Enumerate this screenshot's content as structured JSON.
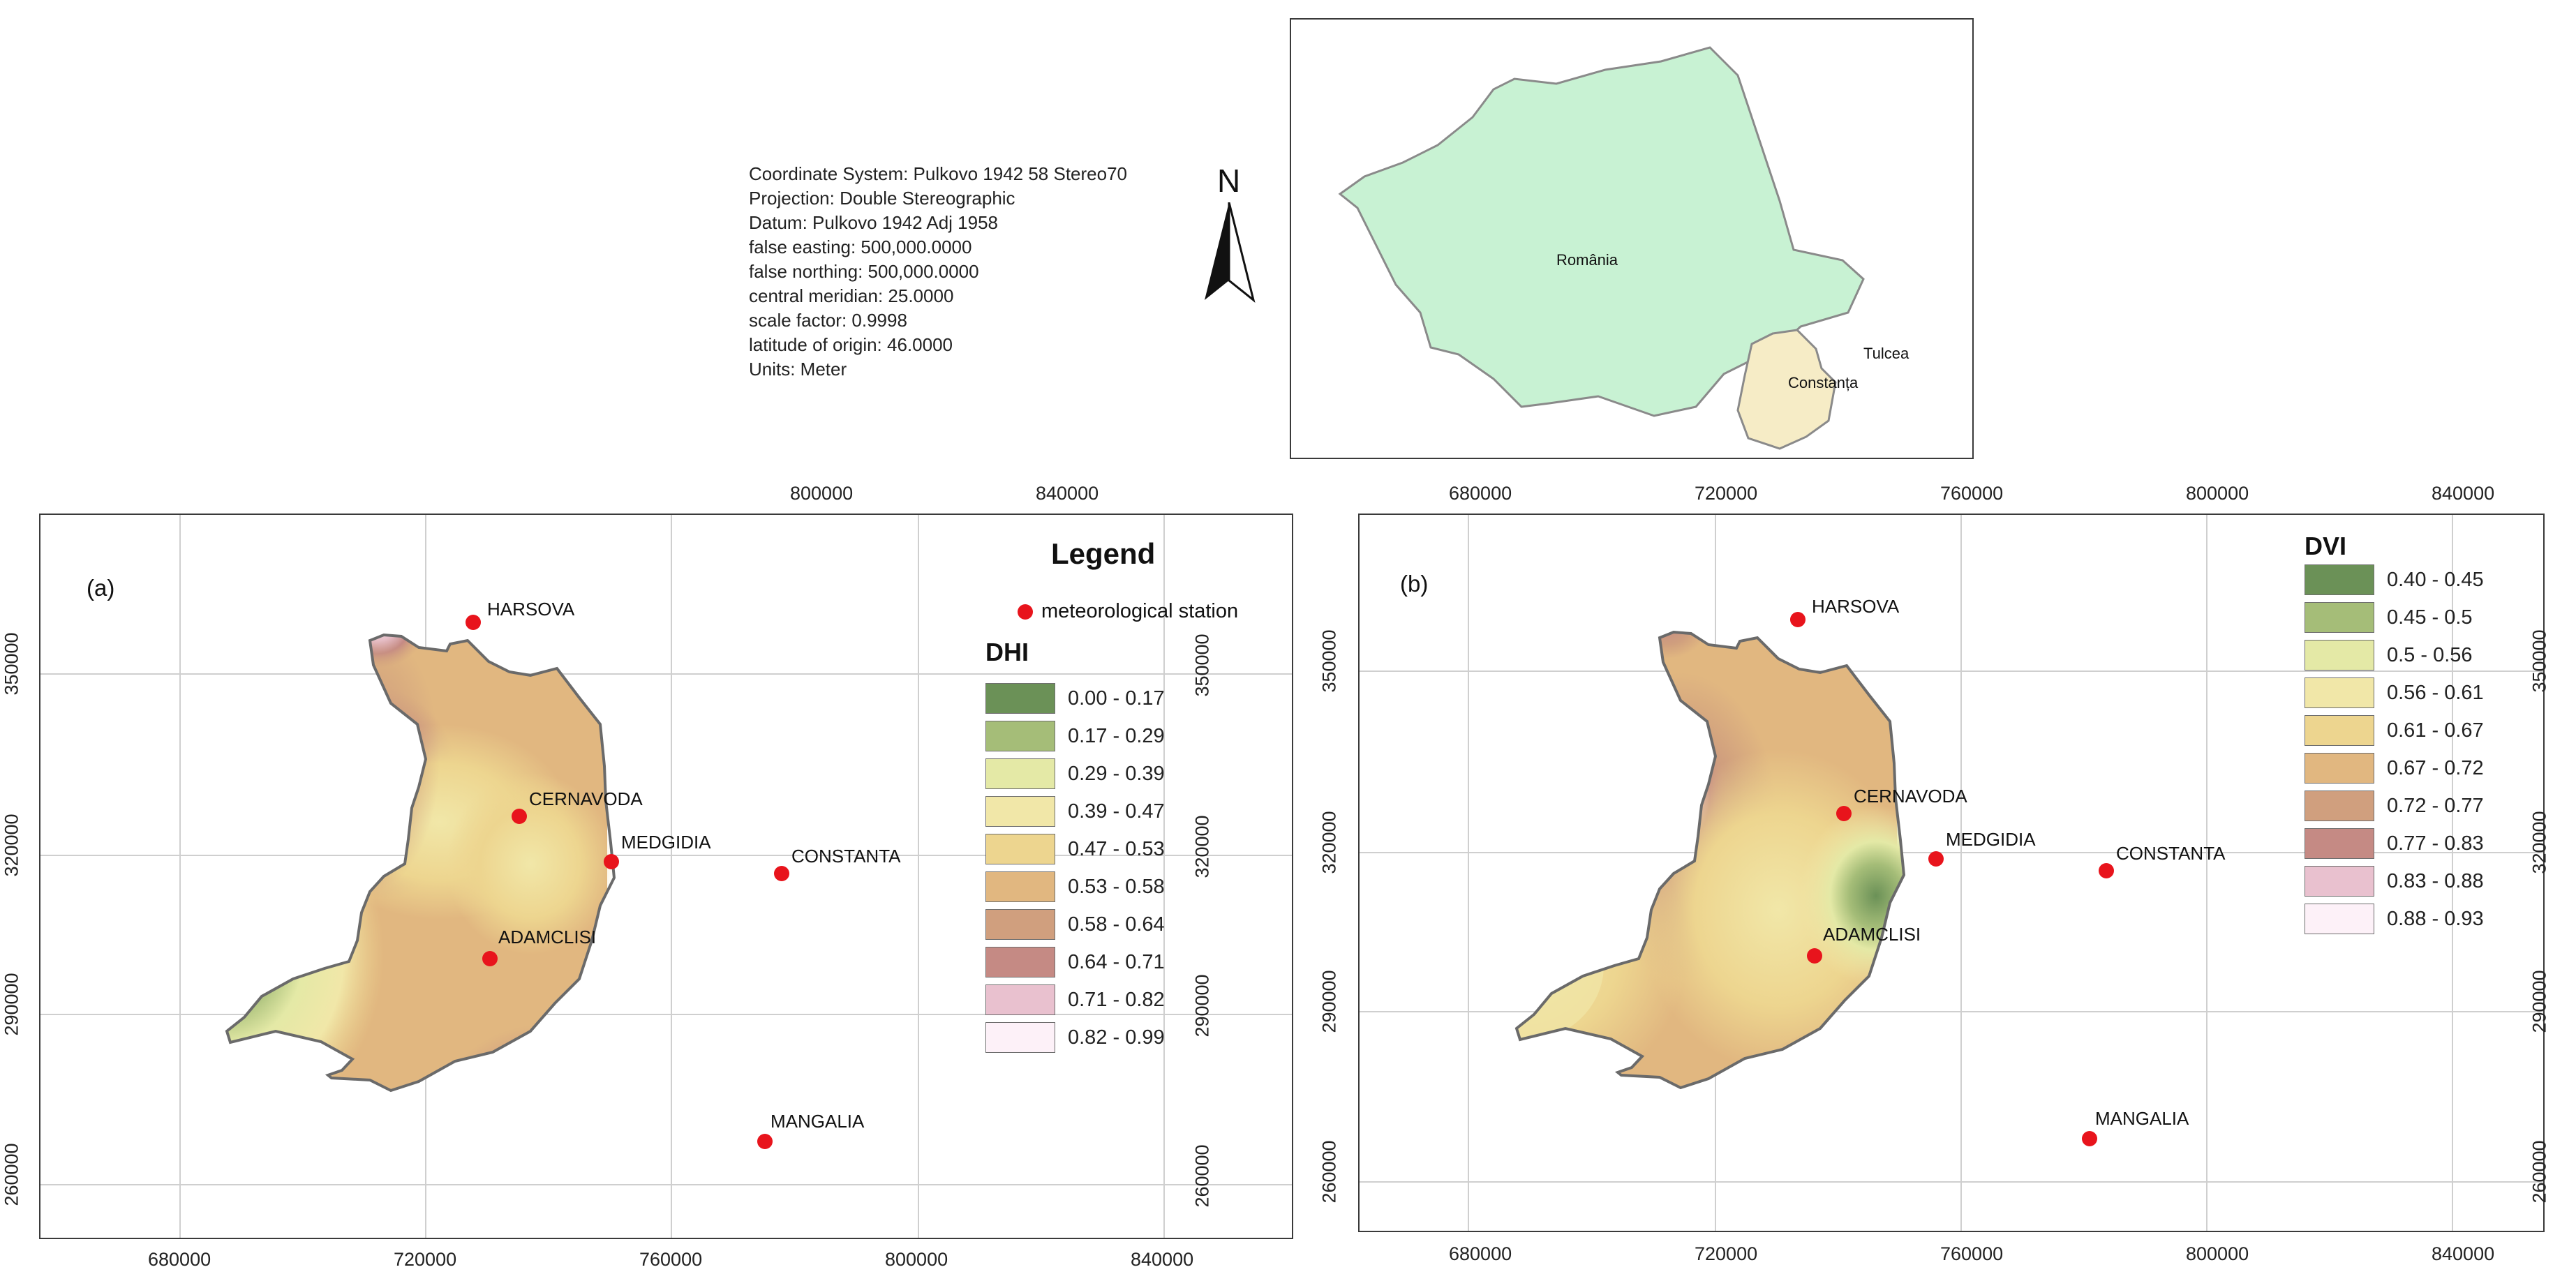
{
  "metadata": [
    "Coordinate System: Pulkovo 1942 58 Stereo70",
    "Projection: Double Stereographic",
    "Datum: Pulkovo 1942 Adj 1958",
    "false easting: 500,000.0000",
    "false northing: 500,000.0000",
    "central meridian: 25.0000",
    "scale factor: 0.9998",
    "latitude of origin: 46.0000",
    "Units: Meter"
  ],
  "north_arrow": {
    "letter": "N"
  },
  "inset": {
    "country_label": "România",
    "county_labels": [
      "Tulcea",
      "Constanța"
    ],
    "colors": {
      "country": "#c8f2d3",
      "county": "#f6ecc6",
      "border": "#8a8a8a"
    }
  },
  "axis": {
    "x_ticks": [
      "680000",
      "720000",
      "760000",
      "800000",
      "840000"
    ],
    "y_ticks": [
      "350000",
      "320000",
      "290000",
      "260000"
    ]
  },
  "stations": [
    "HARSOVA",
    "CERNAVODA",
    "MEDGIDIA",
    "CONSTANTA",
    "ADAMCLISI",
    "MANGALIA"
  ],
  "station_color": "#e8141c",
  "panel_a": {
    "label": "(a)",
    "legend_title": "Legend",
    "station_legend_label": "meteorological station",
    "index_title": "DHI",
    "classes": [
      {
        "range": "0.00 - 0.17",
        "color": "#6b9157"
      },
      {
        "range": "0.17 - 0.29",
        "color": "#a5bd78"
      },
      {
        "range": "0.29 - 0.39",
        "color": "#e4e9a6"
      },
      {
        "range": "0.39 - 0.47",
        "color": "#f1e7a8"
      },
      {
        "range": "0.47 - 0.53",
        "color": "#edd58f"
      },
      {
        "range": "0.53 - 0.58",
        "color": "#e1b780"
      },
      {
        "range": "0.58 - 0.64",
        "color": "#d09f7e"
      },
      {
        "range": "0.64 - 0.71",
        "color": "#c58a84"
      },
      {
        "range": "0.71 - 0.82",
        "color": "#e9c1cf"
      },
      {
        "range": "0.82 - 0.99",
        "color": "#fdf1f8"
      }
    ]
  },
  "panel_b": {
    "label": "(b)",
    "index_title": "DVI",
    "classes": [
      {
        "range": "0.40 - 0.45",
        "color": "#6b9157"
      },
      {
        "range": "0.45 - 0.5",
        "color": "#a5bd78"
      },
      {
        "range": "0.5 - 0.56",
        "color": "#e4e9a6"
      },
      {
        "range": "0.56 - 0.61",
        "color": "#f1e7a8"
      },
      {
        "range": "0.61 - 0.67",
        "color": "#edd58f"
      },
      {
        "range": "0.67 - 0.72",
        "color": "#e1b780"
      },
      {
        "range": "0.72 - 0.77",
        "color": "#d09f7e"
      },
      {
        "range": "0.77 - 0.83",
        "color": "#c58a84"
      },
      {
        "range": "0.83 - 0.88",
        "color": "#e9c1cf"
      },
      {
        "range": "0.88 - 0.93",
        "color": "#fdf1f8"
      }
    ]
  }
}
